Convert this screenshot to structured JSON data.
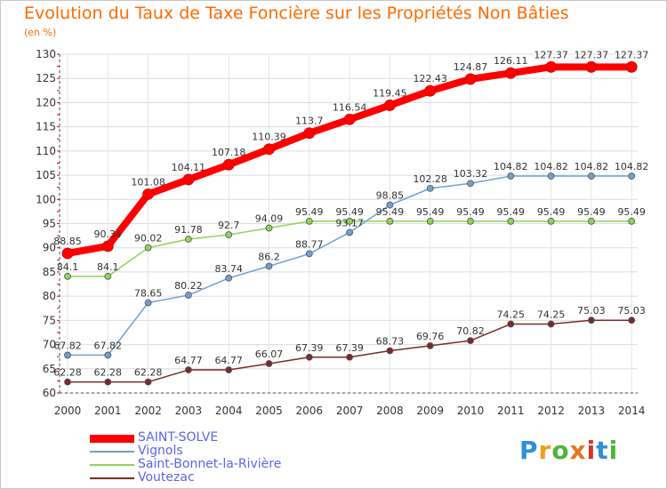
{
  "title": "Evolution du Taux de Taxe Foncière sur les Propriétés Non Bâties",
  "subtitle": "(en %)",
  "logo": {
    "text": "Proxiti",
    "colors": [
      "#2f8fd8",
      "#e8a21e",
      "#4fb43a",
      "#e8761e",
      "#d8342a",
      "#2f8fd8",
      "#4fb43a"
    ]
  },
  "chart_data": {
    "type": "line",
    "x": [
      "2000",
      "2001",
      "2002",
      "2003",
      "2004",
      "2005",
      "2006",
      "2007",
      "2008",
      "2009",
      "2010",
      "2011",
      "2012",
      "2013",
      "2014"
    ],
    "ylim": [
      60,
      130
    ],
    "yticks": [
      60,
      65,
      70,
      75,
      80,
      85,
      90,
      95,
      100,
      105,
      110,
      115,
      120,
      125,
      130
    ],
    "grid": true,
    "legend_position": "bottom-left",
    "series": [
      {
        "name": "SAINT-SOLVE",
        "color": "#ff0000",
        "values": [
          88.85,
          90.34,
          101.08,
          104.11,
          107.18,
          110.39,
          113.7,
          116.54,
          119.45,
          122.43,
          124.87,
          126.11,
          127.37,
          127.37,
          127.37
        ],
        "labels": [
          "88.85",
          "90.34",
          "101.08",
          "104.11",
          "107.18",
          "110.39",
          "113.7",
          "116.54",
          "119.45",
          "122.43",
          "124.87",
          "126.11",
          "127.37",
          "127.37",
          "127.37"
        ]
      },
      {
        "name": "Vignols",
        "color": "#6fa0d0",
        "values": [
          67.82,
          67.82,
          78.65,
          80.22,
          83.74,
          86.2,
          88.77,
          93.17,
          98.85,
          102.28,
          103.32,
          104.82,
          104.82,
          104.82,
          104.82
        ],
        "labels": [
          "67.82",
          "67.82",
          "78.65",
          "80.22",
          "83.74",
          "86.2",
          "88.77",
          "93.17",
          "98.85",
          "102.28",
          "103.32",
          "104.82",
          "104.82",
          "104.82",
          "104.82"
        ]
      },
      {
        "name": "Saint-Bonnet-la-Rivière",
        "color": "#8ed35a",
        "values": [
          84.1,
          84.1,
          90.02,
          91.78,
          92.7,
          94.09,
          95.49,
          95.49,
          95.49,
          95.49,
          95.49,
          95.49,
          95.49,
          95.49,
          95.49
        ],
        "labels": [
          "84.1",
          "84.1",
          "90.02",
          "91.78",
          "92.7",
          "94.09",
          "95.49",
          "95.49",
          "95.49",
          "95.49",
          "95.49",
          "95.49",
          "95.49",
          "95.49",
          "95.49"
        ]
      },
      {
        "name": "Voutezac",
        "color": "#7a2a2a",
        "values": [
          62.28,
          62.28,
          62.28,
          64.77,
          64.77,
          66.07,
          67.39,
          67.39,
          68.73,
          69.76,
          70.82,
          74.25,
          74.25,
          75.03,
          75.03
        ],
        "labels": [
          "62.28",
          "62.28",
          "62.28",
          "64.77",
          "64.77",
          "66.07",
          "67.39",
          "67.39",
          "68.73",
          "69.76",
          "70.82",
          "74.25",
          "74.25",
          "75.03",
          "75.03"
        ]
      }
    ]
  }
}
